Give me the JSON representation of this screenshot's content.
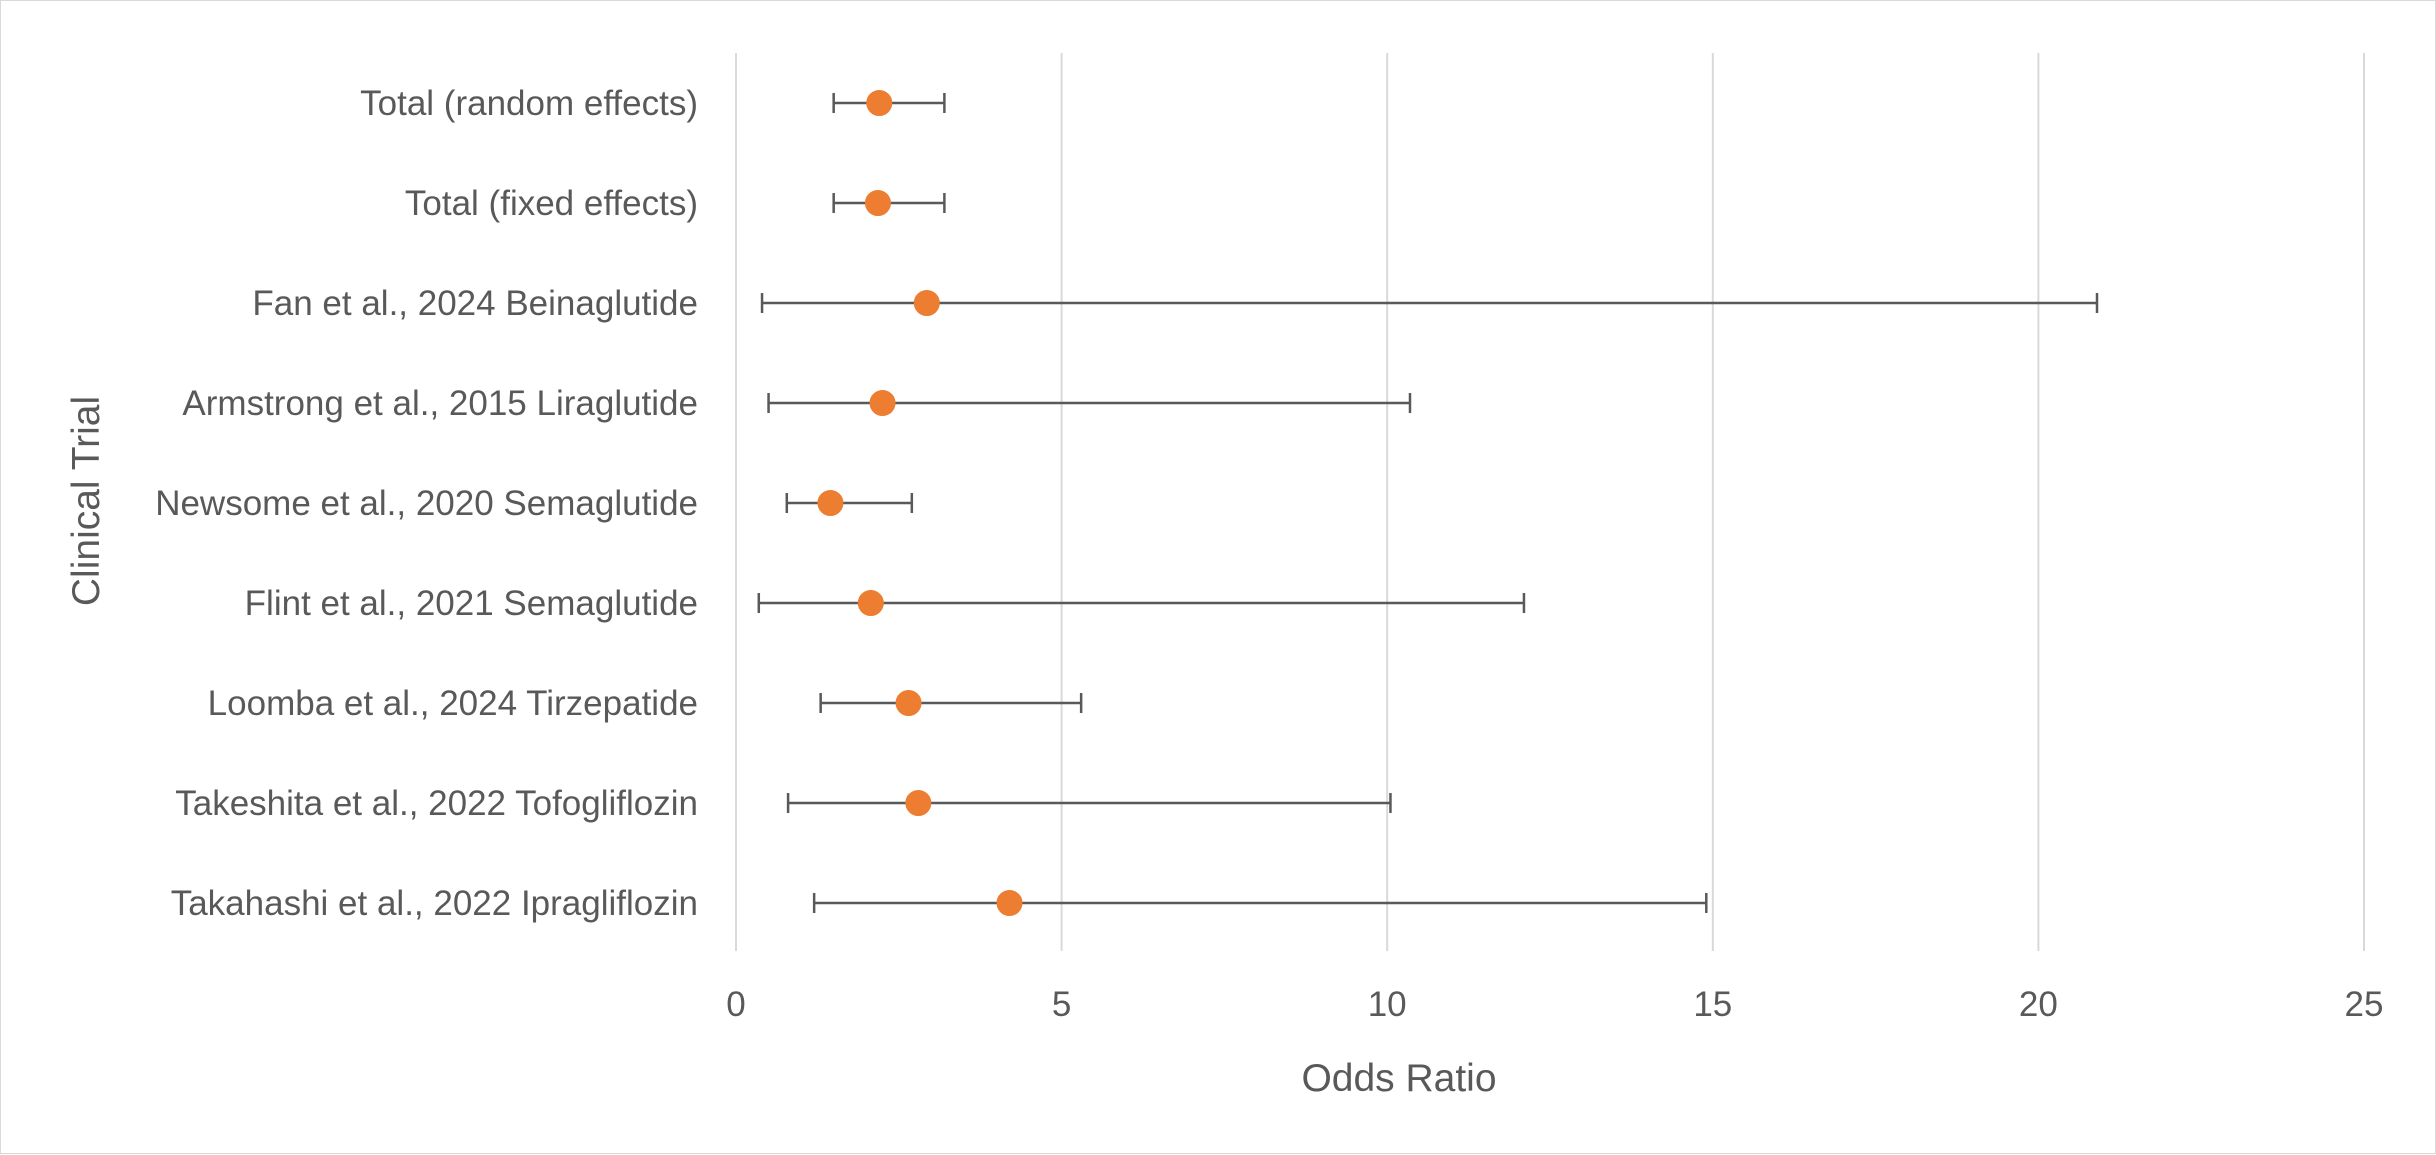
{
  "chart_data": {
    "type": "scatter",
    "subtype": "forest-plot",
    "title": "",
    "xlabel": "Odds Ratio",
    "ylabel": "Clinical Trial",
    "xlim": [
      0,
      25
    ],
    "xticks": [
      0,
      5,
      10,
      15,
      20,
      25
    ],
    "grid": "vertical",
    "legend": "none",
    "marker_color": "#ED7D31",
    "errorbar_color": "#595959",
    "gridline_color": "#d9d9d9",
    "categories": [
      "Total (random effects)",
      "Total (fixed effects)",
      "Fan et al., 2024 Beinaglutide",
      "Armstrong et al., 2015 Liraglutide",
      "Newsome et al., 2020 Semaglutide",
      "Flint et al., 2021 Semaglutide",
      "Loomba et al., 2024 Tirzepatide",
      "Takeshita et al., 2022 Tofogliflozin",
      "Takahashi et al., 2022 Ipragliflozin"
    ],
    "odds_ratio": [
      2.2,
      2.18,
      2.93,
      2.25,
      1.45,
      2.07,
      2.65,
      2.8,
      4.2
    ],
    "ci_lower": [
      1.5,
      1.5,
      0.4,
      0.5,
      0.78,
      0.35,
      1.3,
      0.8,
      1.2
    ],
    "ci_upper": [
      3.2,
      3.2,
      20.9,
      10.35,
      2.7,
      12.1,
      5.3,
      10.05,
      14.9
    ]
  }
}
